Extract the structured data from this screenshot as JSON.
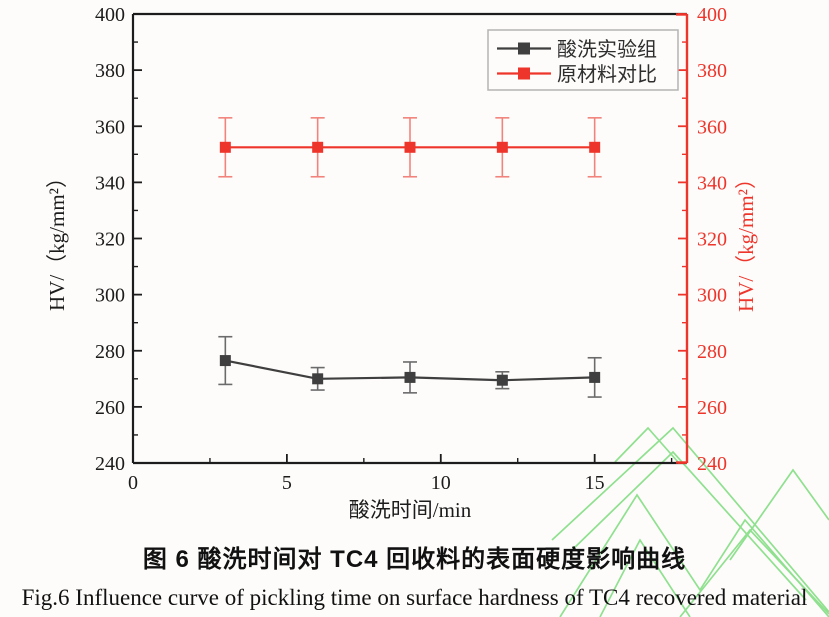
{
  "figure": {
    "caption_cn": "图 6 酸洗时间对 TC4 回收料的表面硬度影响曲线",
    "caption_en": "Fig.6 Influence curve of pickling time on surface hardness of TC4 recovered material"
  },
  "chart_data": {
    "type": "line",
    "title": "",
    "xlabel": "酸洗时间/min",
    "ylabel_left": "HV/（kg/mm²）",
    "ylabel_right": "HV/（kg/mm²）",
    "xlim": [
      0,
      18
    ],
    "ylim": [
      240,
      400
    ],
    "x_ticks": [
      0,
      5,
      10,
      15
    ],
    "x_minor_ticks": [
      2.5,
      7.5,
      12.5,
      17.5
    ],
    "y_ticks": [
      240,
      260,
      280,
      300,
      320,
      340,
      360,
      380,
      400
    ],
    "y_minor_ticks": [
      250,
      270,
      290,
      310,
      330,
      350,
      370,
      390
    ],
    "grid": false,
    "legend_position": "top-right-inside",
    "x": [
      3,
      6,
      9,
      12,
      15
    ],
    "series": [
      {
        "name": "酸洗实验组",
        "marker": "square",
        "color": "#3f3f3f",
        "error_color": "#6b6b6b",
        "values": [
          276.5,
          270.0,
          270.5,
          269.5,
          270.5
        ],
        "errors": [
          8.5,
          4.0,
          5.5,
          3.0,
          7.0
        ]
      },
      {
        "name": "原材料对比",
        "marker": "square",
        "color": "#ee352b",
        "error_color": "#f2837c",
        "values": [
          352.5,
          352.5,
          352.5,
          352.5,
          352.5
        ],
        "errors": [
          10.5,
          10.5,
          10.5,
          10.5,
          10.5
        ]
      }
    ],
    "axis_colors": {
      "left": "#1c1c1c",
      "bottom": "#1c1c1c",
      "top": "#1c1c1c",
      "right": "#ee352b"
    },
    "legend_border_color": "#b3b3b3",
    "tick_label_color_left": "#1c1c1c",
    "tick_label_color_right": "#ee352b"
  },
  "watermark": {
    "color": "#8fe08f"
  }
}
